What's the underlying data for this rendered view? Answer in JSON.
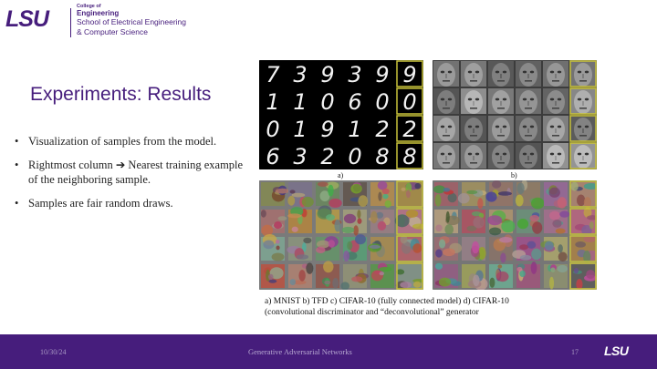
{
  "header": {
    "logo_text": "LSU",
    "college": "College of",
    "college_name": "Engineering",
    "school_line1": "School of Electrical Engineering",
    "school_line2": "& Computer Science"
  },
  "slide": {
    "title": "Experiments: Results",
    "bullets": [
      "Visualization of samples from the model.",
      "Rightmost column ➔ Nearest training example of the neighboring sample.",
      "Samples are fair random draws."
    ]
  },
  "figure": {
    "mnist_digits": [
      [
        "7",
        "3",
        "9",
        "3",
        "9",
        "9"
      ],
      [
        "1",
        "1",
        "0",
        "6",
        "0",
        "0"
      ],
      [
        "0",
        "1",
        "9",
        "1",
        "2",
        "2"
      ],
      [
        "6",
        "3",
        "2",
        "0",
        "8",
        "8"
      ]
    ],
    "label_a": "a)",
    "label_b": "b)",
    "highlight_color": "#c8c23a",
    "caption_line1": "a) MNIST b) TFD c) CIFAR-10 (fully connected model) d) CIFAR-10",
    "caption_line2": "(convolutional discriminator and “deconvolutional” generator"
  },
  "footer": {
    "date": "10/30/24",
    "title": "Generative Adversarial Networks",
    "page": "17",
    "logo_text": "LSU"
  },
  "colors": {
    "brand_purple": "#461d7c",
    "footer_bg": "#461d7c"
  }
}
